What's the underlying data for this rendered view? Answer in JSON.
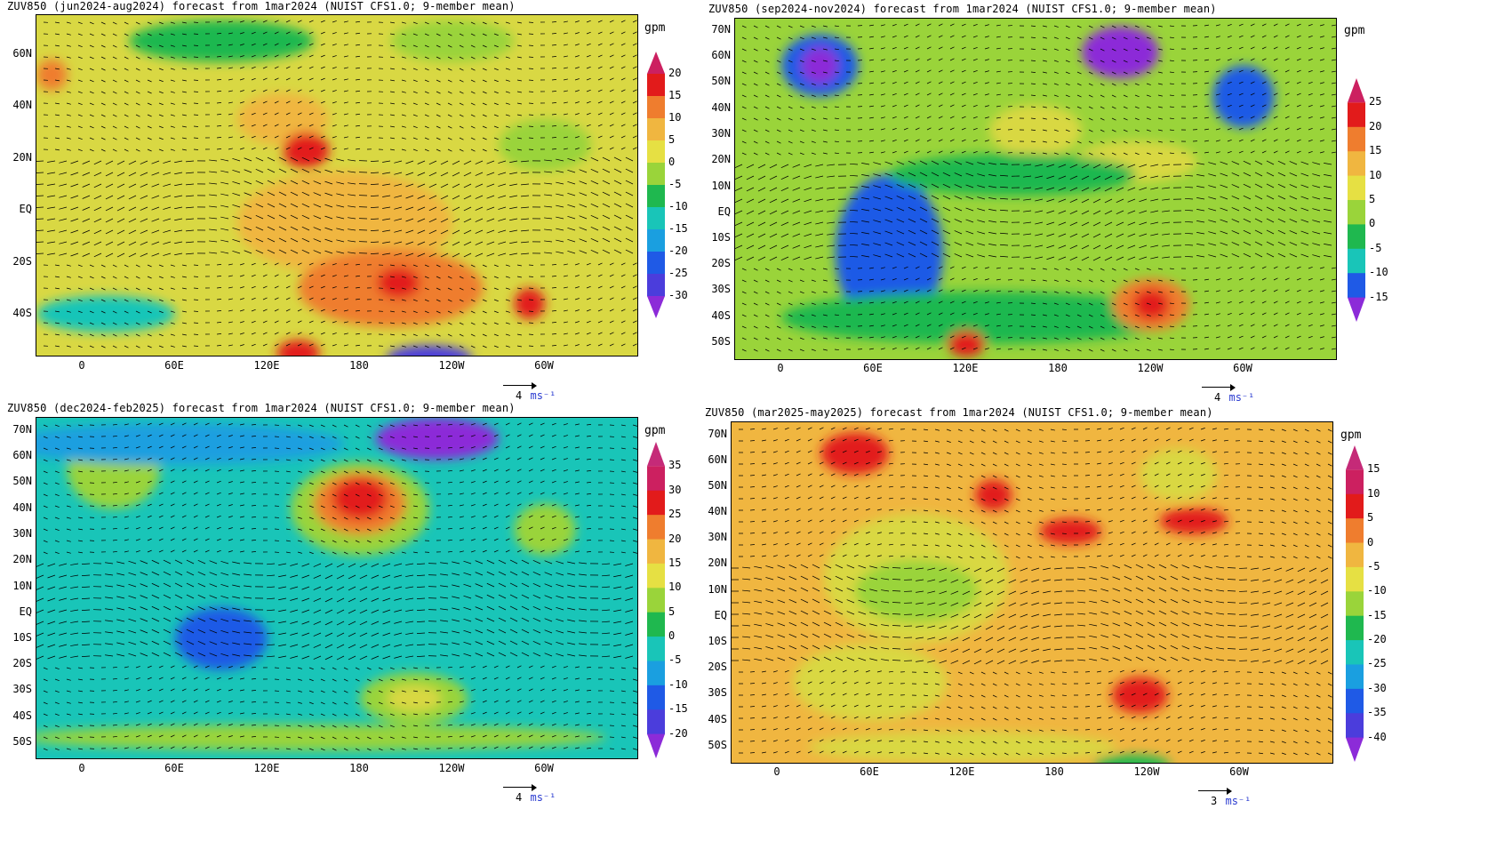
{
  "panels": [
    {
      "title": "ZUV850 (jun2024-aug2024) forecast from 1mar2024 (NUIST CFS1.0; 9-member mean)",
      "unit": "gpm",
      "lat_labels": [
        "60N",
        "40N",
        "20N",
        "EQ",
        "20S",
        "40S"
      ],
      "lon_labels": [
        "0",
        "60E",
        "120E",
        "180",
        "120W",
        "60W"
      ],
      "colorbar": {
        "levels": [
          "20",
          "15",
          "10",
          "5",
          "0",
          "-5",
          "-10",
          "-15",
          "-20",
          "-25",
          "-30"
        ],
        "colors": [
          "#8c2bd8",
          "#4b3ddc",
          "#1f5ae6",
          "#1a9fe0",
          "#19c5b8",
          "#1fb84f",
          "#9ad43a",
          "#e6e043",
          "#f0b640",
          "#ef7d2e",
          "#e21b1b",
          "#cc2060"
        ]
      },
      "ref_vector": {
        "value": "4",
        "unit": "ms⁻¹"
      },
      "field": {
        "base": "#d9d843",
        "blobs": [
          {
            "lon": 170,
            "lat": -5,
            "rx": 70,
            "ry": 20,
            "color": "#f0b640"
          },
          {
            "lon": 200,
            "lat": -30,
            "rx": 60,
            "ry": 15,
            "color": "#ef7d2e"
          },
          {
            "lon": 130,
            "lat": 35,
            "rx": 30,
            "ry": 10,
            "color": "#f0b640"
          },
          {
            "lon": 145,
            "lat": 23,
            "rx": 15,
            "ry": 7,
            "color": "#e21b1b"
          },
          {
            "lon": 205,
            "lat": -28,
            "rx": 14,
            "ry": 6,
            "color": "#e21b1b"
          },
          {
            "lon": 290,
            "lat": -36,
            "rx": 10,
            "ry": 6,
            "color": "#e21b1b"
          },
          {
            "lon": 140,
            "lat": -55,
            "rx": 14,
            "ry": 5,
            "color": "#e21b1b"
          },
          {
            "lon": 225,
            "lat": -57,
            "rx": 28,
            "ry": 5,
            "color": "#4b3ddc"
          },
          {
            "lon": 15,
            "lat": -40,
            "rx": 45,
            "ry": 7,
            "color": "#19c5b8"
          },
          {
            "lon": 90,
            "lat": 65,
            "rx": 60,
            "ry": 8,
            "color": "#1fb84f"
          },
          {
            "lon": 240,
            "lat": 65,
            "rx": 40,
            "ry": 8,
            "color": "#9ad43a"
          },
          {
            "lon": 300,
            "lat": 25,
            "rx": 30,
            "ry": 10,
            "color": "#9ad43a"
          },
          {
            "lon": -20,
            "lat": 52,
            "rx": 10,
            "ry": 6,
            "color": "#ef7d2e"
          }
        ]
      }
    },
    {
      "title": "ZUV850 (sep2024-nov2024) forecast from 1mar2024 (NUIST CFS1.0; 9-member mean)",
      "unit": "gpm",
      "lat_labels": [
        "70N",
        "60N",
        "50N",
        "40N",
        "30N",
        "20N",
        "10N",
        "EQ",
        "10S",
        "20S",
        "30S",
        "40S",
        "50S"
      ],
      "lon_labels": [
        "0",
        "60E",
        "120E",
        "180",
        "120W",
        "60W"
      ],
      "colorbar": {
        "levels": [
          "25",
          "20",
          "15",
          "10",
          "5",
          "0",
          "-5",
          "-10",
          "-15"
        ],
        "colors": [
          "#8c2bd8",
          "#1f5ae6",
          "#19c5b8",
          "#1fb84f",
          "#9ad43a",
          "#e6e043",
          "#f0b640",
          "#ef7d2e",
          "#e21b1b",
          "#cc2060"
        ]
      },
      "ref_vector": {
        "value": "4",
        "unit": "ms⁻¹"
      },
      "field": {
        "base": "#9ad43a",
        "blobs": [
          {
            "lon": 70,
            "lat": -15,
            "rx": 35,
            "ry": 30,
            "color": "#1f5ae6"
          },
          {
            "lon": 25,
            "lat": 57,
            "rx": 25,
            "ry": 12,
            "color": "#1f5ae6"
          },
          {
            "lon": 25,
            "lat": 57,
            "rx": 12,
            "ry": 7,
            "color": "#8c2bd8"
          },
          {
            "lon": 220,
            "lat": 62,
            "rx": 25,
            "ry": 10,
            "color": "#8c2bd8"
          },
          {
            "lon": 300,
            "lat": 45,
            "rx": 20,
            "ry": 12,
            "color": "#1f5ae6"
          },
          {
            "lon": 130,
            "lat": -40,
            "rx": 130,
            "ry": 10,
            "color": "#1fb84f"
          },
          {
            "lon": 240,
            "lat": -35,
            "rx": 25,
            "ry": 10,
            "color": "#ef7d2e"
          },
          {
            "lon": 240,
            "lat": -35,
            "rx": 12,
            "ry": 6,
            "color": "#e21b1b"
          },
          {
            "lon": 120,
            "lat": -50,
            "rx": 12,
            "ry": 5,
            "color": "#e21b1b"
          },
          {
            "lon": 165,
            "lat": 32,
            "rx": 30,
            "ry": 10,
            "color": "#d9d843"
          },
          {
            "lon": 230,
            "lat": 20,
            "rx": 40,
            "ry": 8,
            "color": "#d9d843"
          },
          {
            "lon": 150,
            "lat": 15,
            "rx": 80,
            "ry": 8,
            "color": "#1fb84f"
          }
        ]
      }
    },
    {
      "title": "ZUV850 (dec2024-feb2025) forecast from 1mar2024 (NUIST CFS1.0; 9-member mean)",
      "unit": "gpm",
      "lat_labels": [
        "70N",
        "60N",
        "50N",
        "40N",
        "30N",
        "20N",
        "10N",
        "EQ",
        "10S",
        "20S",
        "30S",
        "40S",
        "50S"
      ],
      "lon_labels": [
        "0",
        "60E",
        "120E",
        "180",
        "120W",
        "60W"
      ],
      "colorbar": {
        "levels": [
          "35",
          "30",
          "25",
          "20",
          "15",
          "10",
          "5",
          "0",
          "-5",
          "-10",
          "-15",
          "-20"
        ],
        "colors": [
          "#8c2bd8",
          "#4b3ddc",
          "#1f5ae6",
          "#1a9fe0",
          "#19c5b8",
          "#1fb84f",
          "#9ad43a",
          "#e6e043",
          "#f0b640",
          "#ef7d2e",
          "#e21b1b",
          "#cc2060",
          "#c52a78"
        ]
      },
      "ref_vector": {
        "value": "4",
        "unit": "ms⁻¹"
      },
      "field": {
        "base": "#19c5b8",
        "blobs": [
          {
            "lon": 180,
            "lat": 40,
            "rx": 45,
            "ry": 18,
            "color": "#9ad43a"
          },
          {
            "lon": 180,
            "lat": 42,
            "rx": 30,
            "ry": 12,
            "color": "#ef7d2e"
          },
          {
            "lon": 180,
            "lat": 44,
            "rx": 18,
            "ry": 8,
            "color": "#e21b1b"
          },
          {
            "lon": 230,
            "lat": 67,
            "rx": 40,
            "ry": 8,
            "color": "#8c2bd8"
          },
          {
            "lon": 20,
            "lat": 55,
            "rx": 30,
            "ry": 15,
            "color": "#9ad43a"
          },
          {
            "lon": 300,
            "lat": 32,
            "rx": 20,
            "ry": 10,
            "color": "#9ad43a"
          },
          {
            "lon": 215,
            "lat": -33,
            "rx": 35,
            "ry": 10,
            "color": "#9ad43a"
          },
          {
            "lon": 215,
            "lat": -33,
            "rx": 18,
            "ry": 5,
            "color": "#d9d843"
          },
          {
            "lon": 90,
            "lat": -10,
            "rx": 30,
            "ry": 12,
            "color": "#1f5ae6"
          },
          {
            "lon": 150,
            "lat": -48,
            "rx": 190,
            "ry": 5,
            "color": "#9ad43a"
          },
          {
            "lon": 60,
            "lat": 65,
            "rx": 110,
            "ry": 8,
            "color": "#1a9fe0"
          }
        ]
      }
    },
    {
      "title": "ZUV850 (mar2025-may2025) forecast from 1mar2024 (NUIST CFS1.0; 9-member mean)",
      "unit": "gpm",
      "lat_labels": [
        "70N",
        "60N",
        "50N",
        "40N",
        "30N",
        "20N",
        "10N",
        "EQ",
        "10S",
        "20S",
        "30S",
        "40S",
        "50S"
      ],
      "lon_labels": [
        "0",
        "60E",
        "120E",
        "180",
        "120W",
        "60W"
      ],
      "colorbar": {
        "levels": [
          "15",
          "10",
          "5",
          "0",
          "-5",
          "-10",
          "-15",
          "-20",
          "-25",
          "-30",
          "-35",
          "-40"
        ],
        "colors": [
          "#8c2bd8",
          "#4b3ddc",
          "#1f5ae6",
          "#1a9fe0",
          "#19c5b8",
          "#1fb84f",
          "#9ad43a",
          "#e6e043",
          "#f0b640",
          "#ef7d2e",
          "#e21b1b",
          "#cc2060",
          "#c52a78"
        ]
      },
      "ref_vector": {
        "value": "3",
        "unit": "ms⁻¹"
      },
      "field": {
        "base": "#f0b640",
        "blobs": [
          {
            "lon": 90,
            "lat": 15,
            "rx": 60,
            "ry": 25,
            "color": "#d9d843"
          },
          {
            "lon": 90,
            "lat": 10,
            "rx": 40,
            "ry": 12,
            "color": "#9ad43a"
          },
          {
            "lon": 50,
            "lat": 63,
            "rx": 22,
            "ry": 8,
            "color": "#e21b1b"
          },
          {
            "lon": 140,
            "lat": 47,
            "rx": 12,
            "ry": 6,
            "color": "#e21b1b"
          },
          {
            "lon": 190,
            "lat": 33,
            "rx": 20,
            "ry": 5,
            "color": "#e21b1b"
          },
          {
            "lon": 270,
            "lat": 37,
            "rx": 22,
            "ry": 5,
            "color": "#e21b1b"
          },
          {
            "lon": 235,
            "lat": -30,
            "rx": 18,
            "ry": 7,
            "color": "#e21b1b"
          },
          {
            "lon": 60,
            "lat": -25,
            "rx": 50,
            "ry": 15,
            "color": "#d9d843"
          },
          {
            "lon": 120,
            "lat": -50,
            "rx": 100,
            "ry": 6,
            "color": "#d9d843"
          },
          {
            "lon": 230,
            "lat": -57,
            "rx": 25,
            "ry": 4,
            "color": "#1fb84f"
          },
          {
            "lon": 260,
            "lat": 55,
            "rx": 25,
            "ry": 10,
            "color": "#d9d843"
          }
        ]
      }
    }
  ]
}
